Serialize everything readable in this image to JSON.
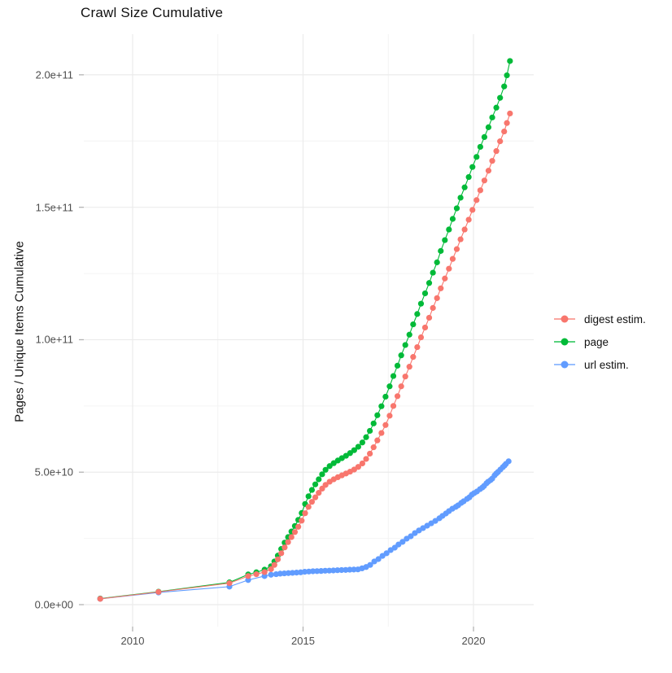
{
  "chart_data": {
    "type": "scatter",
    "title": "Crawl Size Cumulative",
    "ylabel": "Pages / Unique Items Cumulative",
    "xlabel": "",
    "value_unit": "items, values are in billions (1e9)",
    "xlim": [
      2008.57,
      2021.77
    ],
    "ylim": [
      -8.3,
      215.4
    ],
    "grid": "major and minor, light gray on white",
    "legend_position": "right",
    "x_ticks": [
      {
        "value": 2010,
        "label": "2010"
      },
      {
        "value": 2015,
        "label": "2015"
      },
      {
        "value": 2020,
        "label": "2020"
      }
    ],
    "x_minor": [
      2012.5,
      2017.5
    ],
    "y_ticks": [
      {
        "value": 0,
        "label": "0.0e+00"
      },
      {
        "value": 50,
        "label": "5.0e+10"
      },
      {
        "value": 100,
        "label": "1.0e+11"
      },
      {
        "value": 150,
        "label": "1.5e+11"
      },
      {
        "value": 200,
        "label": "2.0e+11"
      }
    ],
    "y_minor": [
      25,
      75,
      125,
      175
    ],
    "legend_order": [
      "digest estim.",
      "page",
      "url estim."
    ],
    "draw_order": [
      "page",
      "url estim.",
      "digest estim."
    ],
    "series": [
      {
        "name": "digest estim.",
        "color": "#F8766D",
        "points": [
          [
            2009.05,
            2.2
          ],
          [
            2010.76,
            4.8
          ],
          [
            2012.84,
            8.1
          ],
          [
            2013.39,
            10.8
          ],
          [
            2013.63,
            11.5
          ],
          [
            2013.87,
            12.3
          ],
          [
            2014.06,
            13.4
          ],
          [
            2014.16,
            15.0
          ],
          [
            2014.26,
            17.1
          ],
          [
            2014.36,
            19.4
          ],
          [
            2014.46,
            21.6
          ],
          [
            2014.56,
            23.6
          ],
          [
            2014.66,
            25.5
          ],
          [
            2014.76,
            27.4
          ],
          [
            2014.86,
            29.4
          ],
          [
            2014.96,
            31.7
          ],
          [
            2015.06,
            34.5
          ],
          [
            2015.16,
            36.9
          ],
          [
            2015.26,
            38.8
          ],
          [
            2015.36,
            40.5
          ],
          [
            2015.46,
            42.2
          ],
          [
            2015.56,
            43.8
          ],
          [
            2015.66,
            45.2
          ],
          [
            2015.78,
            46.4
          ],
          [
            2015.9,
            47.3
          ],
          [
            2016.02,
            48.1
          ],
          [
            2016.14,
            48.8
          ],
          [
            2016.26,
            49.5
          ],
          [
            2016.38,
            50.2
          ],
          [
            2016.5,
            51.0
          ],
          [
            2016.62,
            52.0
          ],
          [
            2016.74,
            53.3
          ],
          [
            2016.85,
            55.0
          ],
          [
            2016.96,
            57.0
          ],
          [
            2017.07,
            59.4
          ],
          [
            2017.18,
            62.0
          ],
          [
            2017.3,
            64.8
          ],
          [
            2017.42,
            67.8
          ],
          [
            2017.54,
            71.3
          ],
          [
            2017.65,
            75.0
          ],
          [
            2017.77,
            78.7
          ],
          [
            2017.88,
            82.4
          ],
          [
            2018.0,
            86.1
          ],
          [
            2018.12,
            89.8
          ],
          [
            2018.23,
            93.5
          ],
          [
            2018.35,
            97.2
          ],
          [
            2018.46,
            100.9
          ],
          [
            2018.58,
            104.6
          ],
          [
            2018.7,
            108.3
          ],
          [
            2018.81,
            112.0
          ],
          [
            2018.93,
            115.7
          ],
          [
            2019.04,
            119.4
          ],
          [
            2019.16,
            123.1
          ],
          [
            2019.28,
            126.8
          ],
          [
            2019.39,
            130.5
          ],
          [
            2019.51,
            134.2
          ],
          [
            2019.62,
            137.9
          ],
          [
            2019.74,
            141.6
          ],
          [
            2019.86,
            145.3
          ],
          [
            2019.97,
            149.0
          ],
          [
            2020.09,
            152.7
          ],
          [
            2020.2,
            156.4
          ],
          [
            2020.32,
            160.1
          ],
          [
            2020.44,
            163.8
          ],
          [
            2020.55,
            167.5
          ],
          [
            2020.67,
            171.2
          ],
          [
            2020.78,
            174.9
          ],
          [
            2020.9,
            178.6
          ],
          [
            2020.98,
            181.8
          ],
          [
            2021.07,
            185.4
          ]
        ]
      },
      {
        "name": "page",
        "color": "#00BA38",
        "points": [
          [
            2009.05,
            2.3
          ],
          [
            2010.76,
            4.9
          ],
          [
            2012.84,
            8.4
          ],
          [
            2013.39,
            11.4
          ],
          [
            2013.63,
            12.2
          ],
          [
            2013.87,
            13.2
          ],
          [
            2014.06,
            14.5
          ],
          [
            2014.16,
            16.3
          ],
          [
            2014.26,
            18.5
          ],
          [
            2014.36,
            21.0
          ],
          [
            2014.46,
            23.4
          ],
          [
            2014.56,
            25.5
          ],
          [
            2014.66,
            27.6
          ],
          [
            2014.76,
            29.7
          ],
          [
            2014.86,
            32.0
          ],
          [
            2014.96,
            34.6
          ],
          [
            2015.06,
            38.0
          ],
          [
            2015.16,
            40.9
          ],
          [
            2015.26,
            43.3
          ],
          [
            2015.36,
            45.4
          ],
          [
            2015.46,
            47.3
          ],
          [
            2015.56,
            49.2
          ],
          [
            2015.66,
            50.9
          ],
          [
            2015.78,
            52.3
          ],
          [
            2015.9,
            53.4
          ],
          [
            2016.02,
            54.4
          ],
          [
            2016.14,
            55.3
          ],
          [
            2016.26,
            56.2
          ],
          [
            2016.38,
            57.2
          ],
          [
            2016.5,
            58.3
          ],
          [
            2016.62,
            59.6
          ],
          [
            2016.74,
            61.2
          ],
          [
            2016.85,
            63.2
          ],
          [
            2016.96,
            65.6
          ],
          [
            2017.07,
            68.4
          ],
          [
            2017.18,
            71.5
          ],
          [
            2017.3,
            74.9
          ],
          [
            2017.42,
            78.5
          ],
          [
            2017.54,
            82.4
          ],
          [
            2017.65,
            86.3
          ],
          [
            2017.77,
            90.2
          ],
          [
            2017.88,
            94.1
          ],
          [
            2018.0,
            98.0
          ],
          [
            2018.12,
            101.9
          ],
          [
            2018.23,
            105.8
          ],
          [
            2018.35,
            109.7
          ],
          [
            2018.46,
            113.6
          ],
          [
            2018.58,
            117.5
          ],
          [
            2018.7,
            121.4
          ],
          [
            2018.81,
            125.3
          ],
          [
            2018.93,
            129.2
          ],
          [
            2019.04,
            133.5
          ],
          [
            2019.16,
            137.6
          ],
          [
            2019.28,
            141.6
          ],
          [
            2019.39,
            145.6
          ],
          [
            2019.51,
            149.6
          ],
          [
            2019.62,
            153.6
          ],
          [
            2019.74,
            157.5
          ],
          [
            2019.86,
            161.4
          ],
          [
            2019.97,
            165.2
          ],
          [
            2020.09,
            169.0
          ],
          [
            2020.2,
            172.8
          ],
          [
            2020.32,
            176.5
          ],
          [
            2020.44,
            180.2
          ],
          [
            2020.55,
            183.9
          ],
          [
            2020.67,
            187.6
          ],
          [
            2020.78,
            191.3
          ],
          [
            2020.9,
            195.6
          ],
          [
            2020.98,
            199.8
          ],
          [
            2021.07,
            205.2
          ]
        ]
      },
      {
        "name": "url estim.",
        "color": "#619CFF",
        "points": [
          [
            2009.05,
            2.2
          ],
          [
            2010.76,
            4.6
          ],
          [
            2012.84,
            6.8
          ],
          [
            2013.39,
            9.3
          ],
          [
            2013.87,
            10.8
          ],
          [
            2014.06,
            11.3
          ],
          [
            2014.21,
            11.5
          ],
          [
            2014.33,
            11.7
          ],
          [
            2014.45,
            11.8
          ],
          [
            2014.57,
            11.9
          ],
          [
            2014.69,
            12.0
          ],
          [
            2014.81,
            12.1
          ],
          [
            2014.93,
            12.2
          ],
          [
            2015.05,
            12.4
          ],
          [
            2015.17,
            12.5
          ],
          [
            2015.29,
            12.6
          ],
          [
            2015.41,
            12.65
          ],
          [
            2015.53,
            12.7
          ],
          [
            2015.65,
            12.8
          ],
          [
            2015.77,
            12.85
          ],
          [
            2015.89,
            12.9
          ],
          [
            2016.01,
            13.0
          ],
          [
            2016.13,
            13.05
          ],
          [
            2016.25,
            13.1
          ],
          [
            2016.37,
            13.2
          ],
          [
            2016.49,
            13.25
          ],
          [
            2016.61,
            13.3
          ],
          [
            2016.73,
            13.7
          ],
          [
            2016.85,
            14.2
          ],
          [
            2016.97,
            15.0
          ],
          [
            2017.09,
            16.3
          ],
          [
            2017.21,
            17.2
          ],
          [
            2017.33,
            18.4
          ],
          [
            2017.45,
            19.4
          ],
          [
            2017.57,
            20.6
          ],
          [
            2017.69,
            21.5
          ],
          [
            2017.8,
            22.7
          ],
          [
            2017.92,
            23.7
          ],
          [
            2018.04,
            24.9
          ],
          [
            2018.16,
            25.8
          ],
          [
            2018.28,
            27.0
          ],
          [
            2018.4,
            28.0
          ],
          [
            2018.52,
            28.9
          ],
          [
            2018.64,
            29.8
          ],
          [
            2018.76,
            30.7
          ],
          [
            2018.88,
            31.6
          ],
          [
            2019.0,
            32.6
          ],
          [
            2019.09,
            33.5
          ],
          [
            2019.19,
            34.4
          ],
          [
            2019.28,
            35.3
          ],
          [
            2019.38,
            36.2
          ],
          [
            2019.48,
            36.9
          ],
          [
            2019.55,
            37.5
          ],
          [
            2019.64,
            38.4
          ],
          [
            2019.71,
            39.0
          ],
          [
            2019.81,
            39.9
          ],
          [
            2019.88,
            40.5
          ],
          [
            2019.95,
            41.5
          ],
          [
            2020.02,
            42.1
          ],
          [
            2020.1,
            42.7
          ],
          [
            2020.19,
            43.6
          ],
          [
            2020.26,
            44.2
          ],
          [
            2020.31,
            44.8
          ],
          [
            2020.38,
            45.8
          ],
          [
            2020.43,
            46.4
          ],
          [
            2020.5,
            47.0
          ],
          [
            2020.55,
            47.6
          ],
          [
            2020.62,
            48.8
          ],
          [
            2020.67,
            49.5
          ],
          [
            2020.72,
            50.1
          ],
          [
            2020.79,
            51.0
          ],
          [
            2020.86,
            51.9
          ],
          [
            2020.91,
            52.5
          ],
          [
            2020.95,
            53.1
          ],
          [
            2021.03,
            54.1
          ]
        ]
      }
    ]
  },
  "colors": {
    "grid_major": "#ebebeb",
    "grid_minor": "#f4f4f4",
    "tick_mark": "#b3b3b3",
    "tick_text": "#4d4d4d",
    "title_text": "#111111"
  }
}
